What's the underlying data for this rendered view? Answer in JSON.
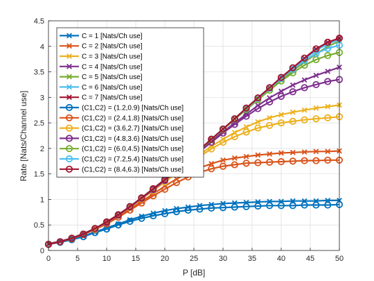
{
  "chart_data": {
    "type": "line",
    "title": "",
    "xlabel": "P [dB]",
    "ylabel": "Rate [Nats/Channel use]",
    "xlim": [
      0,
      50
    ],
    "ylim": [
      0,
      4.5
    ],
    "xticks": [
      0,
      5,
      10,
      15,
      20,
      25,
      30,
      35,
      40,
      45,
      50
    ],
    "yticks": [
      0,
      0.5,
      1,
      1.5,
      2,
      2.5,
      3,
      3.5,
      4,
      4.5
    ],
    "xtick_labels": [
      "0",
      "5",
      "10",
      "15",
      "20",
      "25",
      "30",
      "35",
      "40",
      "45",
      "50"
    ],
    "ytick_labels": [
      "0",
      "0.5",
      "1",
      "1.5",
      "2",
      "2.5",
      "3",
      "3.5",
      "4",
      "4.5"
    ],
    "grid": true,
    "legend_position": "top-left",
    "x": [
      0,
      2,
      4,
      6,
      8,
      10,
      12,
      14,
      16,
      18,
      20,
      22,
      24,
      26,
      28,
      30,
      32,
      34,
      36,
      38,
      40,
      42,
      44,
      46,
      48,
      50
    ],
    "series": [
      {
        "name": "C = 1 [Nats/Ch use]",
        "marker": "x",
        "color": "#0072BD",
        "values": [
          0.13,
          0.17,
          0.22,
          0.28,
          0.36,
          0.44,
          0.52,
          0.6,
          0.67,
          0.73,
          0.78,
          0.82,
          0.85,
          0.88,
          0.9,
          0.92,
          0.93,
          0.94,
          0.95,
          0.96,
          0.96,
          0.97,
          0.97,
          0.97,
          0.98,
          0.98
        ]
      },
      {
        "name": "C = 2 [Nats/Ch use]",
        "marker": "x",
        "color": "#D95319",
        "values": [
          0.13,
          0.18,
          0.24,
          0.32,
          0.42,
          0.54,
          0.67,
          0.81,
          0.96,
          1.11,
          1.26,
          1.4,
          1.52,
          1.62,
          1.7,
          1.77,
          1.81,
          1.84,
          1.87,
          1.89,
          1.91,
          1.92,
          1.93,
          1.94,
          1.94,
          1.95
        ]
      },
      {
        "name": "C = 3 [Nats/Ch use]",
        "marker": "x",
        "color": "#EDB120",
        "values": [
          0.13,
          0.18,
          0.24,
          0.33,
          0.43,
          0.56,
          0.7,
          0.85,
          1.02,
          1.19,
          1.36,
          1.54,
          1.71,
          1.88,
          2.04,
          2.18,
          2.31,
          2.42,
          2.52,
          2.6,
          2.66,
          2.71,
          2.75,
          2.79,
          2.82,
          2.85
        ]
      },
      {
        "name": "C = 4 [Nats/Ch use]",
        "marker": "x",
        "color": "#7E2F8E",
        "values": [
          0.13,
          0.18,
          0.24,
          0.33,
          0.43,
          0.56,
          0.7,
          0.86,
          1.03,
          1.2,
          1.38,
          1.57,
          1.76,
          1.95,
          2.14,
          2.32,
          2.5,
          2.67,
          2.84,
          2.99,
          3.12,
          3.24,
          3.34,
          3.43,
          3.51,
          3.59
        ]
      },
      {
        "name": "C = 5 [Nats/Ch use]",
        "marker": "x",
        "color": "#77AC30",
        "values": [
          0.13,
          0.18,
          0.24,
          0.33,
          0.43,
          0.56,
          0.7,
          0.86,
          1.03,
          1.21,
          1.39,
          1.58,
          1.77,
          1.97,
          2.17,
          2.37,
          2.57,
          2.77,
          2.96,
          3.16,
          3.34,
          3.52,
          3.69,
          3.85,
          4.0,
          4.1
        ]
      },
      {
        "name": "C = 6 [Nats/Ch use]",
        "marker": "x",
        "color": "#4DBEEE",
        "values": [
          0.13,
          0.18,
          0.24,
          0.33,
          0.43,
          0.56,
          0.7,
          0.86,
          1.03,
          1.21,
          1.39,
          1.58,
          1.78,
          1.98,
          2.18,
          2.38,
          2.58,
          2.79,
          2.99,
          3.19,
          3.38,
          3.57,
          3.75,
          3.92,
          4.05,
          4.13
        ]
      },
      {
        "name": "C = 7 [Nats/Ch use]",
        "marker": "x",
        "color": "#A2142F",
        "values": [
          0.13,
          0.18,
          0.24,
          0.33,
          0.43,
          0.56,
          0.7,
          0.86,
          1.03,
          1.21,
          1.39,
          1.58,
          1.78,
          1.98,
          2.18,
          2.38,
          2.58,
          2.79,
          2.99,
          3.19,
          3.39,
          3.58,
          3.77,
          3.95,
          4.08,
          4.16
        ]
      },
      {
        "name": "(C1,C2) = (1.2,0.9) [Nats/Ch use]",
        "marker": "o",
        "color": "#0072BD",
        "values": [
          0.12,
          0.16,
          0.21,
          0.27,
          0.35,
          0.42,
          0.5,
          0.57,
          0.63,
          0.68,
          0.72,
          0.76,
          0.79,
          0.81,
          0.83,
          0.84,
          0.85,
          0.86,
          0.87,
          0.88,
          0.88,
          0.88,
          0.89,
          0.89,
          0.89,
          0.9
        ]
      },
      {
        "name": "(C1,C2) = (2.4,1.8) [Nats/Ch use]",
        "marker": "o",
        "color": "#D95319",
        "values": [
          0.12,
          0.17,
          0.23,
          0.31,
          0.41,
          0.52,
          0.65,
          0.79,
          0.93,
          1.07,
          1.2,
          1.33,
          1.44,
          1.53,
          1.6,
          1.65,
          1.68,
          1.71,
          1.72,
          1.73,
          1.74,
          1.75,
          1.76,
          1.76,
          1.77,
          1.77
        ]
      },
      {
        "name": "(C1,C2) = (3.6,2.7) [Nats/Ch use]",
        "marker": "o",
        "color": "#EDB120",
        "values": [
          0.12,
          0.17,
          0.24,
          0.32,
          0.42,
          0.55,
          0.69,
          0.84,
          1.01,
          1.17,
          1.34,
          1.51,
          1.68,
          1.84,
          1.99,
          2.12,
          2.23,
          2.32,
          2.4,
          2.45,
          2.5,
          2.53,
          2.56,
          2.58,
          2.6,
          2.62
        ]
      },
      {
        "name": "(C1,C2) = (4.8,3.6) [Nats/Ch use]",
        "marker": "o",
        "color": "#7E2F8E",
        "values": [
          0.12,
          0.17,
          0.24,
          0.32,
          0.43,
          0.55,
          0.69,
          0.85,
          1.02,
          1.19,
          1.37,
          1.56,
          1.75,
          1.94,
          2.12,
          2.3,
          2.47,
          2.63,
          2.78,
          2.91,
          3.02,
          3.11,
          3.19,
          3.25,
          3.31,
          3.35
        ]
      },
      {
        "name": "(C1,C2) = (6.0,4.5) [Nats/Ch use]",
        "marker": "o",
        "color": "#77AC30",
        "values": [
          0.12,
          0.17,
          0.24,
          0.32,
          0.43,
          0.56,
          0.7,
          0.86,
          1.03,
          1.21,
          1.39,
          1.58,
          1.77,
          1.97,
          2.17,
          2.37,
          2.57,
          2.76,
          2.95,
          3.14,
          3.32,
          3.48,
          3.63,
          3.74,
          3.82,
          3.88
        ]
      },
      {
        "name": "(C1,C2) = (7.2,5.4) [Nats/Ch use]",
        "marker": "o",
        "color": "#4DBEEE",
        "values": [
          0.12,
          0.17,
          0.24,
          0.32,
          0.43,
          0.56,
          0.7,
          0.86,
          1.03,
          1.21,
          1.39,
          1.58,
          1.78,
          1.98,
          2.18,
          2.38,
          2.58,
          2.78,
          2.98,
          3.18,
          3.37,
          3.55,
          3.72,
          3.86,
          3.96,
          4.02
        ]
      },
      {
        "name": "(C1,C2) = (8.4,6.3) [Nats/Ch use]",
        "marker": "o",
        "color": "#A2142F",
        "values": [
          0.12,
          0.17,
          0.24,
          0.32,
          0.43,
          0.56,
          0.7,
          0.86,
          1.03,
          1.21,
          1.39,
          1.58,
          1.78,
          1.98,
          2.18,
          2.38,
          2.58,
          2.79,
          2.99,
          3.19,
          3.39,
          3.58,
          3.77,
          3.95,
          4.08,
          4.16
        ]
      }
    ]
  }
}
